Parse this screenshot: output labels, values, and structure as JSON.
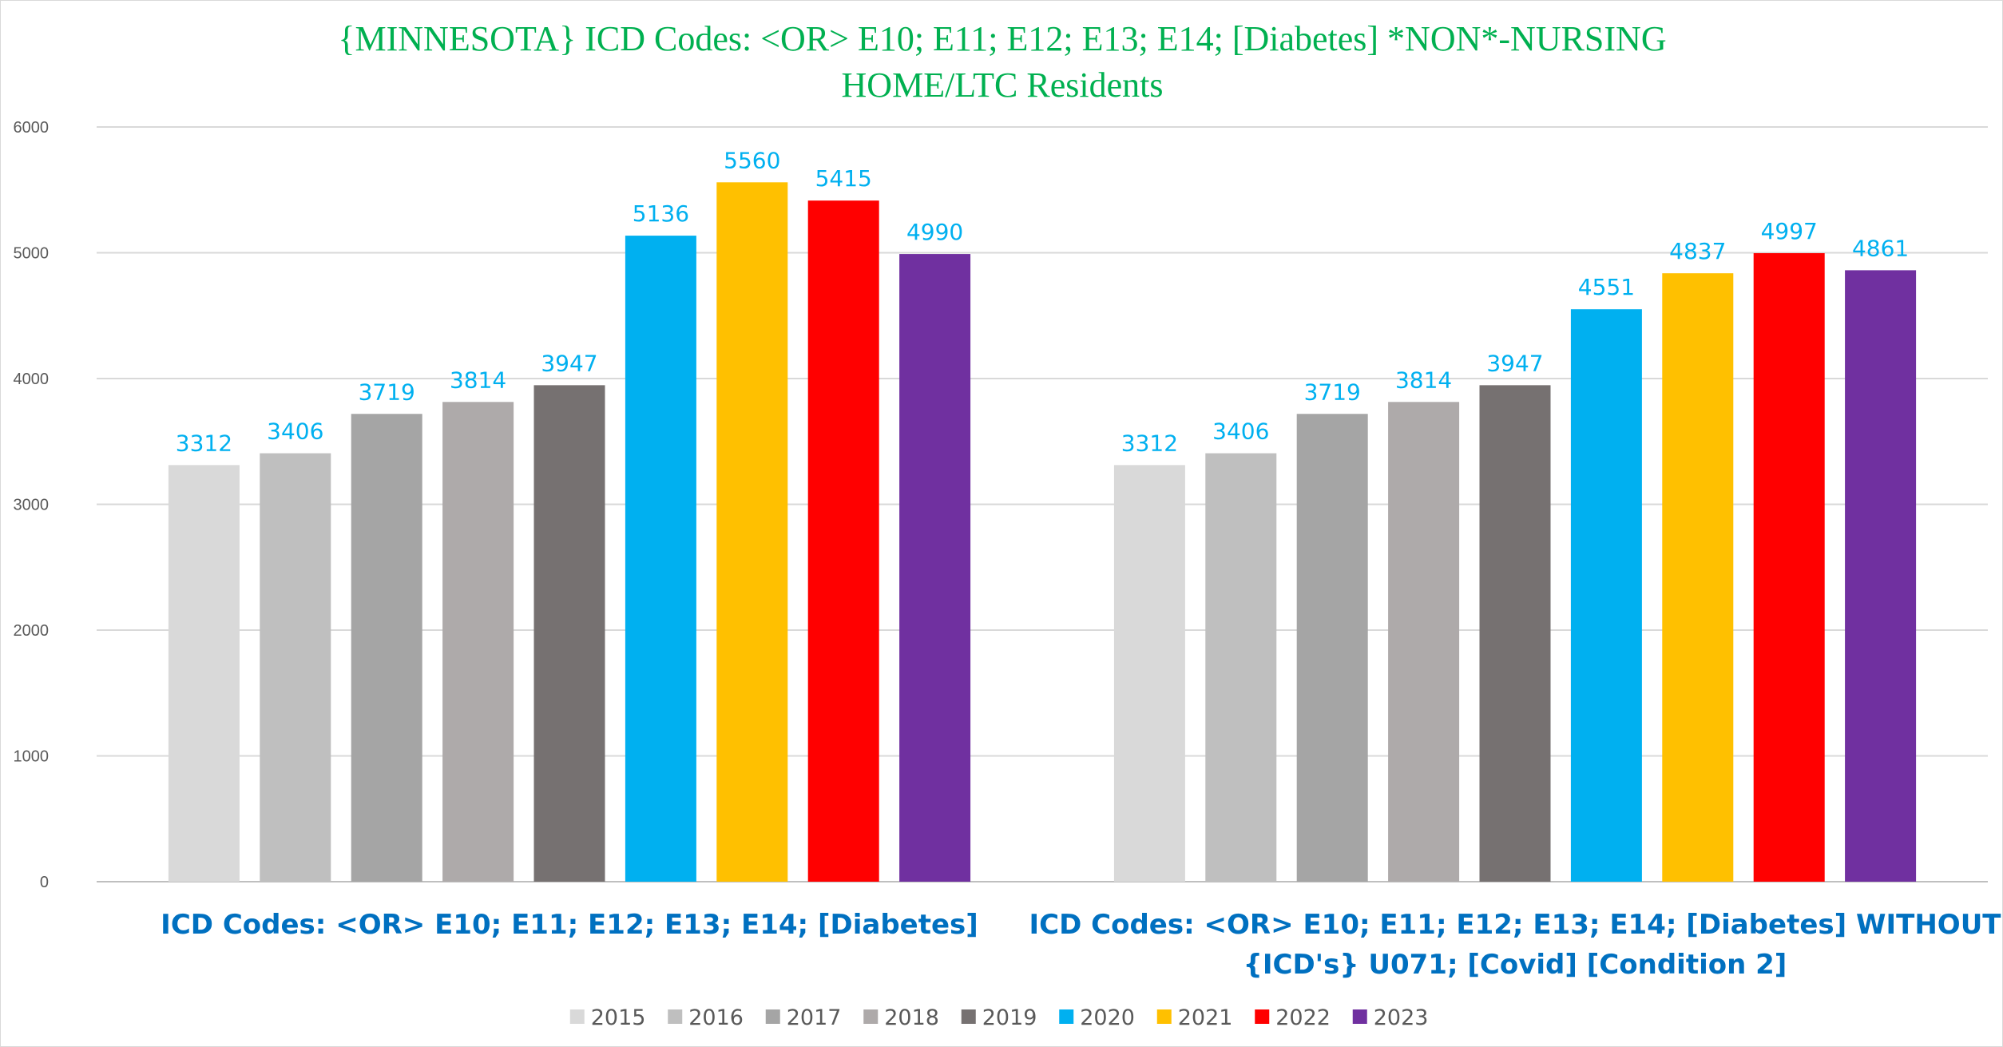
{
  "chart_data": {
    "type": "bar",
    "title": "{MINNESOTA}  ICD Codes: <OR>  E10; E11; E12; E13; E14;  [Diabetes] *NON*-NURSING HOME/LTC Residents",
    "title_lines": [
      "{MINNESOTA}  ICD Codes: <OR>  E10; E11; E12; E13; E14;  [Diabetes] *NON*-NURSING",
      "HOME/LTC Residents"
    ],
    "categories": [
      "ICD Codes: <OR>  E10; E11; E12; E13; E14;  [Diabetes]",
      "ICD Codes: <OR>  E10; E11; E12; E13; E14;  [Diabetes]  WITHOUT {ICD's} U071;  [Covid]  [Condition 2]"
    ],
    "category_lines": [
      [
        "ICD Codes: <OR>  E10; E11; E12; E13; E14;  [Diabetes]"
      ],
      [
        "ICD Codes: <OR>  E10; E11; E12; E13; E14;  [Diabetes]  WITHOUT",
        "{ICD's} U071;  [Covid]  [Condition 2]"
      ]
    ],
    "series": [
      {
        "name": "2015",
        "color": "#d9d9d9",
        "values": [
          3312,
          3312
        ]
      },
      {
        "name": "2016",
        "color": "#bfbfbf",
        "values": [
          3406,
          3406
        ]
      },
      {
        "name": "2017",
        "color": "#a5a5a5",
        "values": [
          3719,
          3719
        ]
      },
      {
        "name": "2018",
        "color": "#aeaaaa",
        "values": [
          3814,
          3814
        ]
      },
      {
        "name": "2019",
        "color": "#767171",
        "values": [
          3947,
          3947
        ]
      },
      {
        "name": "2020",
        "color": "#00b0f0",
        "values": [
          5136,
          4551
        ]
      },
      {
        "name": "2021",
        "color": "#ffc000",
        "values": [
          5560,
          4837
        ]
      },
      {
        "name": "2022",
        "color": "#ff0000",
        "values": [
          5415,
          4997
        ]
      },
      {
        "name": "2023",
        "color": "#7030a0",
        "values": [
          4990,
          4861
        ]
      }
    ],
    "ylim": [
      0,
      6000
    ],
    "yticks": [
      0,
      1000,
      2000,
      3000,
      4000,
      5000,
      6000
    ],
    "xlabel": "",
    "ylabel": "",
    "grid": true,
    "legend": "bottom-center"
  }
}
